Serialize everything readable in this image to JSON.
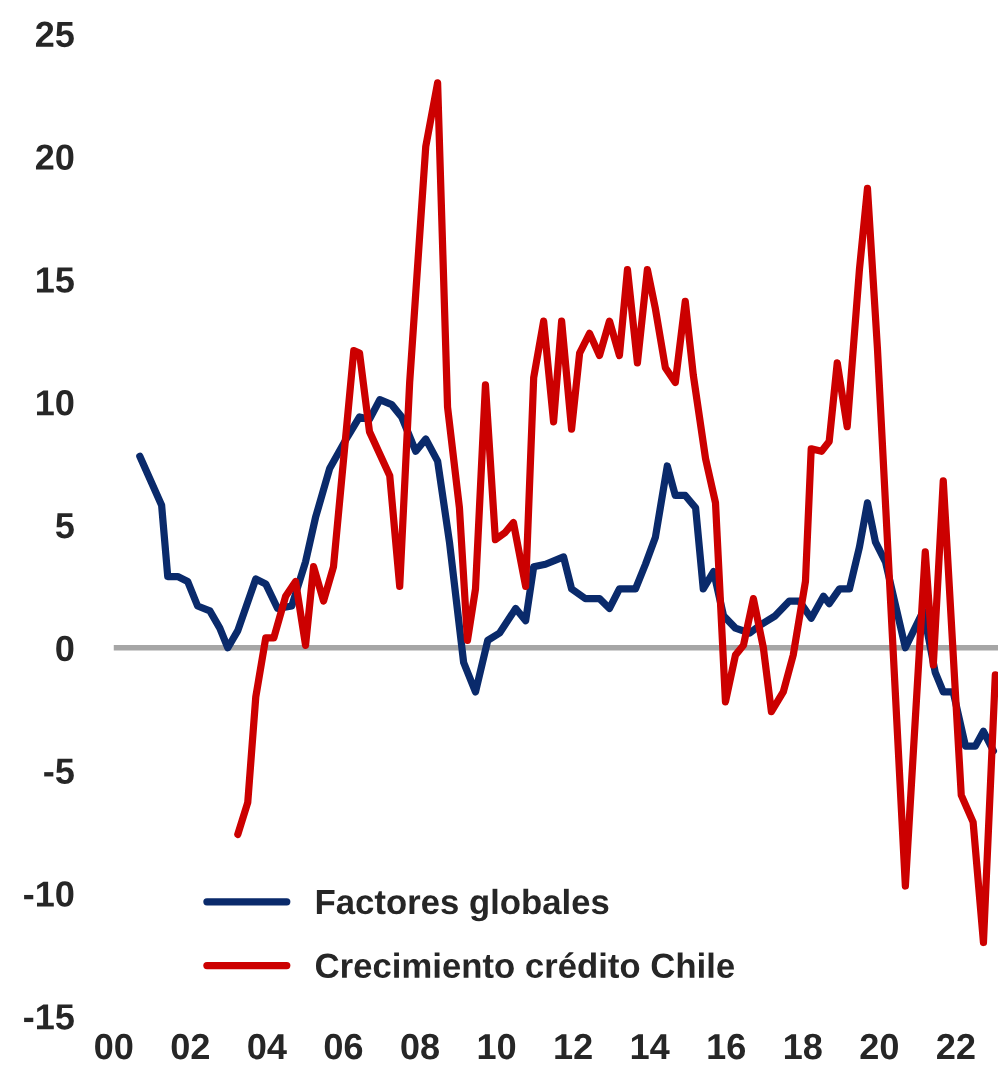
{
  "chart_data": {
    "type": "line",
    "xlim": [
      2000,
      2023.1
    ],
    "xticks": [
      {
        "value": 2000,
        "label": "00"
      },
      {
        "value": 2002,
        "label": "02"
      },
      {
        "value": 2004,
        "label": "04"
      },
      {
        "value": 2006,
        "label": "06"
      },
      {
        "value": 2008,
        "label": "08"
      },
      {
        "value": 2010,
        "label": "10"
      },
      {
        "value": 2012,
        "label": "12"
      },
      {
        "value": 2014,
        "label": "14"
      },
      {
        "value": 2016,
        "label": "16"
      },
      {
        "value": 2018,
        "label": "18"
      },
      {
        "value": 2020,
        "label": "20"
      },
      {
        "value": 2022,
        "label": "22"
      }
    ],
    "ylim": [
      -15,
      25
    ],
    "yticks": [
      -15,
      -10,
      -5,
      0,
      5,
      10,
      15,
      20,
      25
    ],
    "ref_lines": [
      {
        "axis": "y",
        "value": 0,
        "color": "#a6a6a6"
      }
    ],
    "grid": false,
    "legend": "bottom left",
    "marker": "none",
    "line_style": "solid",
    "series": [
      {
        "name": "Factores globales",
        "color": "#0a2a6b",
        "x": [
          2000.68,
          2001.25,
          2001.41,
          2001.67,
          2001.93,
          2002.19,
          2002.51,
          2002.77,
          2002.98,
          2003.24,
          2003.71,
          2003.97,
          2004.28,
          2004.65,
          2005.01,
          2005.27,
          2005.64,
          2006.11,
          2006.42,
          2006.68,
          2006.95,
          2007.26,
          2007.52,
          2007.89,
          2008.15,
          2008.46,
          2008.77,
          2009.14,
          2009.45,
          2009.77,
          2010.08,
          2010.5,
          2010.76,
          2010.97,
          2011.28,
          2011.75,
          2011.96,
          2012.32,
          2012.69,
          2012.95,
          2013.21,
          2013.63,
          2013.89,
          2014.15,
          2014.46,
          2014.67,
          2014.93,
          2015.2,
          2015.4,
          2015.67,
          2015.93,
          2016.24,
          2016.61,
          2016.87,
          2017.28,
          2017.65,
          2017.91,
          2018.22,
          2018.54,
          2018.69,
          2018.96,
          2019.22,
          2019.48,
          2019.69,
          2019.9,
          2020.16,
          2020.68,
          2021.15,
          2021.46,
          2021.67,
          2021.93,
          2022.25,
          2022.51,
          2022.72,
          2022.98
        ],
        "values": [
          7.8,
          5.8,
          2.9,
          2.9,
          2.7,
          1.7,
          1.5,
          0.8,
          0,
          0.7,
          2.8,
          2.6,
          1.6,
          1.7,
          3.5,
          5.3,
          7.3,
          8.6,
          9.4,
          9.3,
          10.1,
          9.9,
          9.4,
          8.0,
          8.5,
          7.6,
          4.3,
          -0.6,
          -1.8,
          0.3,
          0.6,
          1.6,
          1.1,
          3.3,
          3.4,
          3.7,
          2.4,
          2.0,
          2.0,
          1.6,
          2.4,
          2.4,
          3.4,
          4.5,
          7.4,
          6.2,
          6.2,
          5.7,
          2.4,
          3.1,
          1.3,
          0.8,
          0.6,
          0.9,
          1.3,
          1.9,
          1.9,
          1.2,
          2.1,
          1.8,
          2.4,
          2.4,
          4.1,
          5.9,
          4.3,
          3.5,
          0,
          1.5,
          -1.0,
          -1.8,
          -1.8,
          -4.0,
          -4.0,
          -3.4,
          -4.2
        ]
      },
      {
        "name": "Crecimiento crédito Chile",
        "color": "#cc0000",
        "x": [
          2003.24,
          2003.5,
          2003.71,
          2003.97,
          2004.18,
          2004.49,
          2004.75,
          2005.01,
          2005.22,
          2005.48,
          2005.74,
          2006.27,
          2006.42,
          2006.68,
          2007.21,
          2007.47,
          2007.73,
          2008.15,
          2008.46,
          2008.72,
          2009.03,
          2009.24,
          2009.45,
          2009.71,
          2009.97,
          2010.23,
          2010.44,
          2010.76,
          2010.97,
          2011.23,
          2011.49,
          2011.7,
          2011.96,
          2012.17,
          2012.43,
          2012.69,
          2012.95,
          2013.21,
          2013.42,
          2013.68,
          2013.94,
          2014.15,
          2014.41,
          2014.67,
          2014.93,
          2015.14,
          2015.46,
          2015.72,
          2015.98,
          2016.24,
          2016.45,
          2016.71,
          2016.97,
          2017.18,
          2017.49,
          2017.75,
          2018.07,
          2018.22,
          2018.49,
          2018.69,
          2018.9,
          2019.16,
          2019.48,
          2019.69,
          2019.95,
          2020.68,
          2021.2,
          2021.41,
          2021.67,
          2022.14,
          2022.45,
          2022.72,
          2023.03
        ],
        "values": [
          -7.6,
          -6.3,
          -2.0,
          0.4,
          0.4,
          2.1,
          2.7,
          0.1,
          3.3,
          1.9,
          3.3,
          12.1,
          12.0,
          8.8,
          7.0,
          2.5,
          10.8,
          20.4,
          23.0,
          9.8,
          5.7,
          0.3,
          2.4,
          10.7,
          4.4,
          4.7,
          5.1,
          2.5,
          11.0,
          13.3,
          9.2,
          13.3,
          8.9,
          12.0,
          12.8,
          11.9,
          13.3,
          11.9,
          15.4,
          11.6,
          15.4,
          13.8,
          11.4,
          10.8,
          14.1,
          11.1,
          7.7,
          5.9,
          -2.2,
          -0.3,
          0.1,
          2.0,
          0,
          -2.6,
          -1.8,
          -0.3,
          2.7,
          8.1,
          8.0,
          8.4,
          11.6,
          9.0,
          15.4,
          18.7,
          12.2,
          -9.7,
          3.9,
          -0.7,
          6.8,
          -6.0,
          -7.1,
          -12.0,
          -1.1
        ]
      }
    ]
  }
}
